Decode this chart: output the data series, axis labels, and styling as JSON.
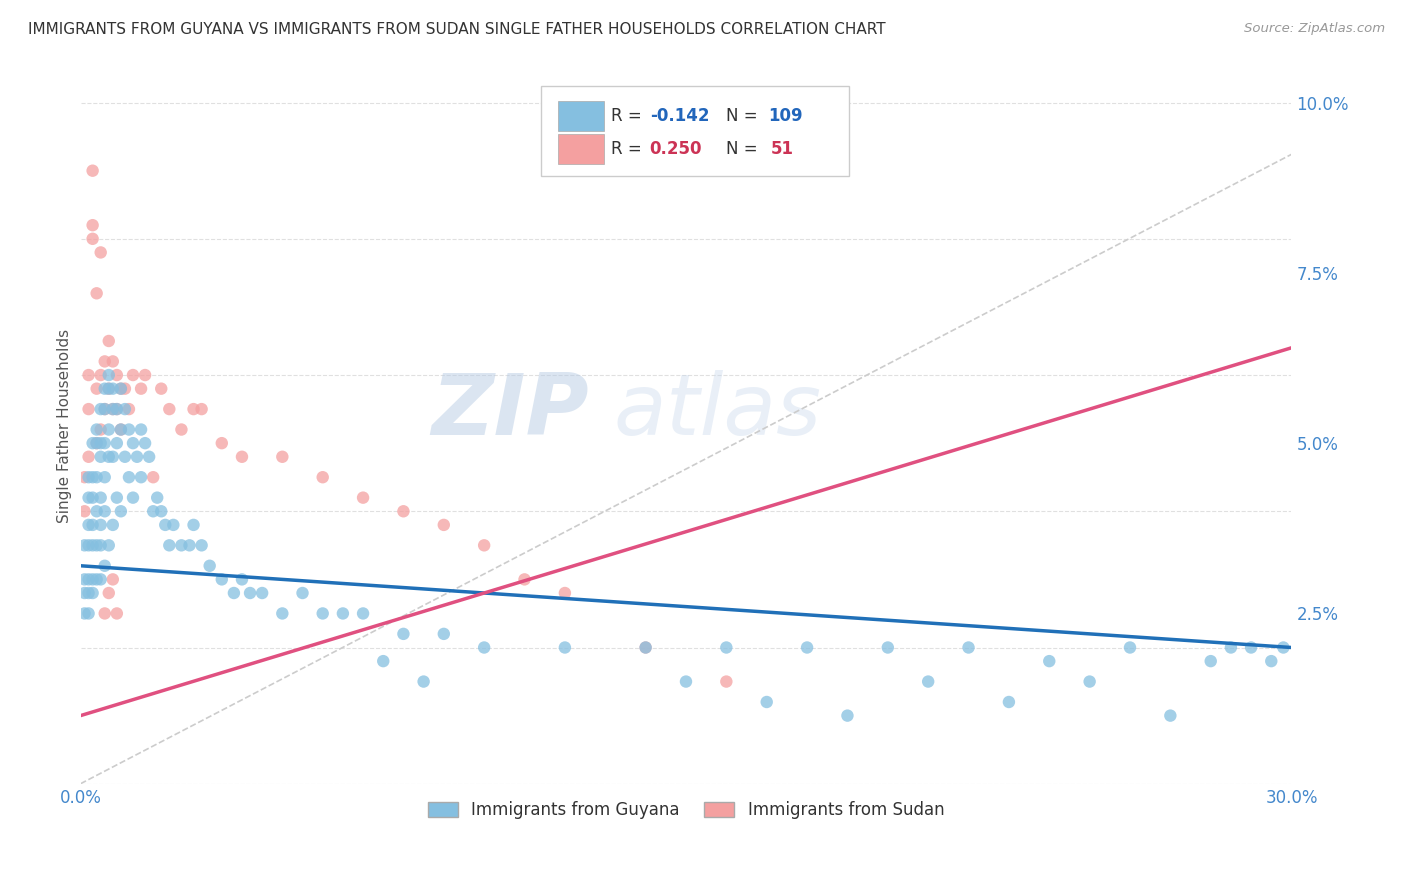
{
  "title": "IMMIGRANTS FROM GUYANA VS IMMIGRANTS FROM SUDAN SINGLE FATHER HOUSEHOLDS CORRELATION CHART",
  "source": "Source: ZipAtlas.com",
  "ylabel": "Single Father Households",
  "xlim": [
    0.0,
    0.3
  ],
  "ylim": [
    0.0,
    0.105
  ],
  "x_ticks": [
    0.0,
    0.05,
    0.1,
    0.15,
    0.2,
    0.25,
    0.3
  ],
  "x_tick_labels": [
    "0.0%",
    "",
    "",
    "",
    "",
    "",
    "30.0%"
  ],
  "y_ticks_right": [
    0.0,
    0.025,
    0.05,
    0.075,
    0.1
  ],
  "y_tick_labels_right": [
    "",
    "2.5%",
    "5.0%",
    "7.5%",
    "10.0%"
  ],
  "guyana_color": "#85bfe0",
  "sudan_color": "#f4a0a0",
  "guyana_R": -0.142,
  "guyana_N": 109,
  "sudan_R": 0.25,
  "sudan_N": 51,
  "legend_label_guyana": "Immigrants from Guyana",
  "legend_label_sudan": "Immigrants from Sudan",
  "watermark_zip": "ZIP",
  "watermark_atlas": "atlas",
  "background_color": "#ffffff",
  "grid_color": "#e0e0e0",
  "trend_line_guyana_color": "#2070b8",
  "trend_line_sudan_color": "#e05080",
  "trend_dashed_color": "#cccccc",
  "guyana_intercept": 0.032,
  "guyana_slope": -0.04,
  "sudan_intercept": 0.01,
  "sudan_slope": 0.18,
  "guyana_x": [
    0.001,
    0.001,
    0.001,
    0.001,
    0.002,
    0.002,
    0.002,
    0.002,
    0.002,
    0.002,
    0.002,
    0.003,
    0.003,
    0.003,
    0.003,
    0.003,
    0.003,
    0.003,
    0.004,
    0.004,
    0.004,
    0.004,
    0.004,
    0.004,
    0.005,
    0.005,
    0.005,
    0.005,
    0.005,
    0.005,
    0.005,
    0.006,
    0.006,
    0.006,
    0.006,
    0.006,
    0.006,
    0.007,
    0.007,
    0.007,
    0.007,
    0.007,
    0.008,
    0.008,
    0.008,
    0.008,
    0.009,
    0.009,
    0.009,
    0.01,
    0.01,
    0.01,
    0.011,
    0.011,
    0.012,
    0.012,
    0.013,
    0.013,
    0.014,
    0.015,
    0.015,
    0.016,
    0.017,
    0.018,
    0.019,
    0.02,
    0.021,
    0.022,
    0.023,
    0.025,
    0.027,
    0.028,
    0.03,
    0.032,
    0.035,
    0.038,
    0.04,
    0.042,
    0.045,
    0.05,
    0.055,
    0.06,
    0.065,
    0.07,
    0.08,
    0.09,
    0.1,
    0.12,
    0.14,
    0.16,
    0.18,
    0.2,
    0.22,
    0.24,
    0.26,
    0.28,
    0.285,
    0.29,
    0.295,
    0.298,
    0.15,
    0.17,
    0.19,
    0.21,
    0.23,
    0.25,
    0.27,
    0.075,
    0.085
  ],
  "guyana_y": [
    0.035,
    0.03,
    0.028,
    0.025,
    0.042,
    0.038,
    0.035,
    0.03,
    0.028,
    0.045,
    0.025,
    0.05,
    0.045,
    0.042,
    0.038,
    0.035,
    0.03,
    0.028,
    0.052,
    0.05,
    0.045,
    0.04,
    0.035,
    0.03,
    0.055,
    0.05,
    0.048,
    0.042,
    0.038,
    0.035,
    0.03,
    0.058,
    0.055,
    0.05,
    0.045,
    0.04,
    0.032,
    0.06,
    0.058,
    0.052,
    0.048,
    0.035,
    0.058,
    0.055,
    0.048,
    0.038,
    0.055,
    0.05,
    0.042,
    0.058,
    0.052,
    0.04,
    0.055,
    0.048,
    0.052,
    0.045,
    0.05,
    0.042,
    0.048,
    0.052,
    0.045,
    0.05,
    0.048,
    0.04,
    0.042,
    0.04,
    0.038,
    0.035,
    0.038,
    0.035,
    0.035,
    0.038,
    0.035,
    0.032,
    0.03,
    0.028,
    0.03,
    0.028,
    0.028,
    0.025,
    0.028,
    0.025,
    0.025,
    0.025,
    0.022,
    0.022,
    0.02,
    0.02,
    0.02,
    0.02,
    0.02,
    0.02,
    0.02,
    0.018,
    0.02,
    0.018,
    0.02,
    0.02,
    0.018,
    0.02,
    0.015,
    0.012,
    0.01,
    0.015,
    0.012,
    0.015,
    0.01,
    0.018,
    0.015
  ],
  "sudan_x": [
    0.001,
    0.001,
    0.002,
    0.002,
    0.003,
    0.003,
    0.004,
    0.004,
    0.005,
    0.005,
    0.006,
    0.006,
    0.007,
    0.007,
    0.008,
    0.008,
    0.009,
    0.009,
    0.01,
    0.01,
    0.011,
    0.012,
    0.013,
    0.015,
    0.016,
    0.018,
    0.02,
    0.022,
    0.025,
    0.028,
    0.03,
    0.035,
    0.04,
    0.05,
    0.06,
    0.07,
    0.08,
    0.09,
    0.1,
    0.11,
    0.12,
    0.14,
    0.16,
    0.005,
    0.004,
    0.003,
    0.006,
    0.007,
    0.008,
    0.009,
    0.002
  ],
  "sudan_y": [
    0.045,
    0.04,
    0.055,
    0.048,
    0.09,
    0.082,
    0.058,
    0.05,
    0.06,
    0.052,
    0.062,
    0.055,
    0.065,
    0.058,
    0.062,
    0.055,
    0.06,
    0.055,
    0.058,
    0.052,
    0.058,
    0.055,
    0.06,
    0.058,
    0.06,
    0.045,
    0.058,
    0.055,
    0.052,
    0.055,
    0.055,
    0.05,
    0.048,
    0.048,
    0.045,
    0.042,
    0.04,
    0.038,
    0.035,
    0.03,
    0.028,
    0.02,
    0.015,
    0.078,
    0.072,
    0.08,
    0.025,
    0.028,
    0.03,
    0.025,
    0.06
  ]
}
